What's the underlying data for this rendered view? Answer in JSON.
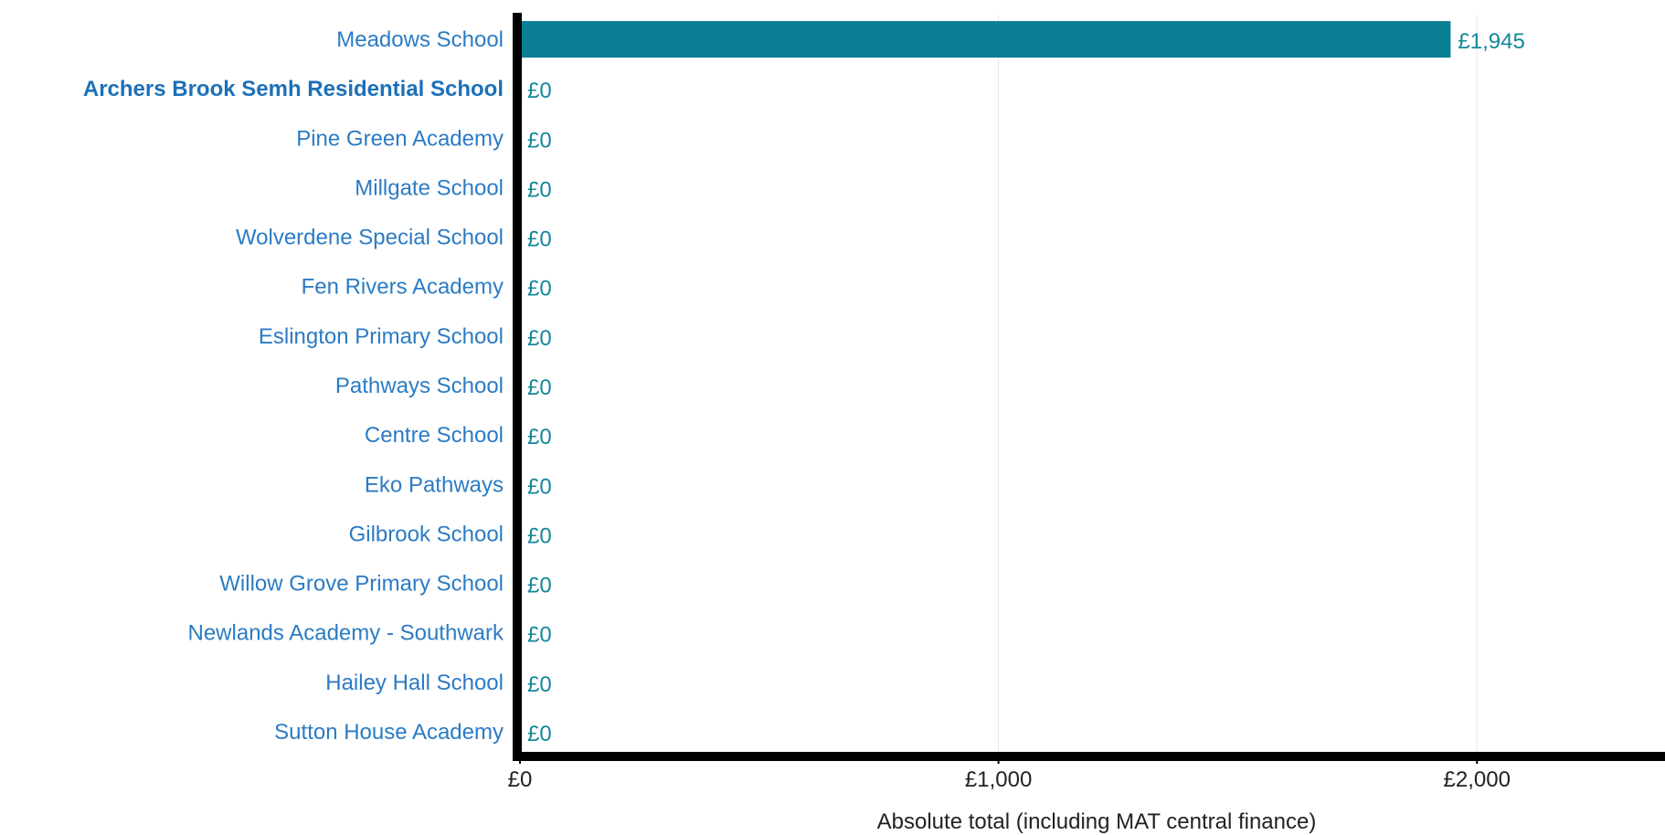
{
  "chart_data": {
    "type": "bar",
    "orientation": "horizontal",
    "categories": [
      "Meadows School",
      "Archers Brook Semh Residential School",
      "Pine Green Academy",
      "Millgate School",
      "Wolverdene Special School",
      "Fen Rivers Academy",
      "Eslington Primary School",
      "Pathways School",
      "Centre School",
      "Eko Pathways",
      "Gilbrook School",
      "Willow Grove Primary School",
      "Newlands Academy - Southwark",
      "Hailey Hall School",
      "Sutton House Academy"
    ],
    "values": [
      1945,
      0,
      0,
      0,
      0,
      0,
      0,
      0,
      0,
      0,
      0,
      0,
      0,
      0,
      0
    ],
    "value_labels": [
      "£1,945",
      "£0",
      "£0",
      "£0",
      "£0",
      "£0",
      "£0",
      "£0",
      "£0",
      "£0",
      "£0",
      "£0",
      "£0",
      "£0",
      "£0"
    ],
    "highlighted_category": "Archers Brook Semh Residential School",
    "xlabel": "Absolute total (including MAT central finance)",
    "xticks": [
      {
        "value": 0,
        "label": "£0"
      },
      {
        "value": 1000,
        "label": "£1,000"
      },
      {
        "value": 2000,
        "label": "£2,000"
      }
    ],
    "xlim": [
      0,
      2393
    ],
    "grid": true,
    "colors": {
      "bar": "#0b7f93",
      "category_label": "#2b7bc4",
      "highlight_label": "#1d70b8",
      "value_label": "#138899",
      "axis": "#000000",
      "grid": "#e6e6e6"
    }
  }
}
